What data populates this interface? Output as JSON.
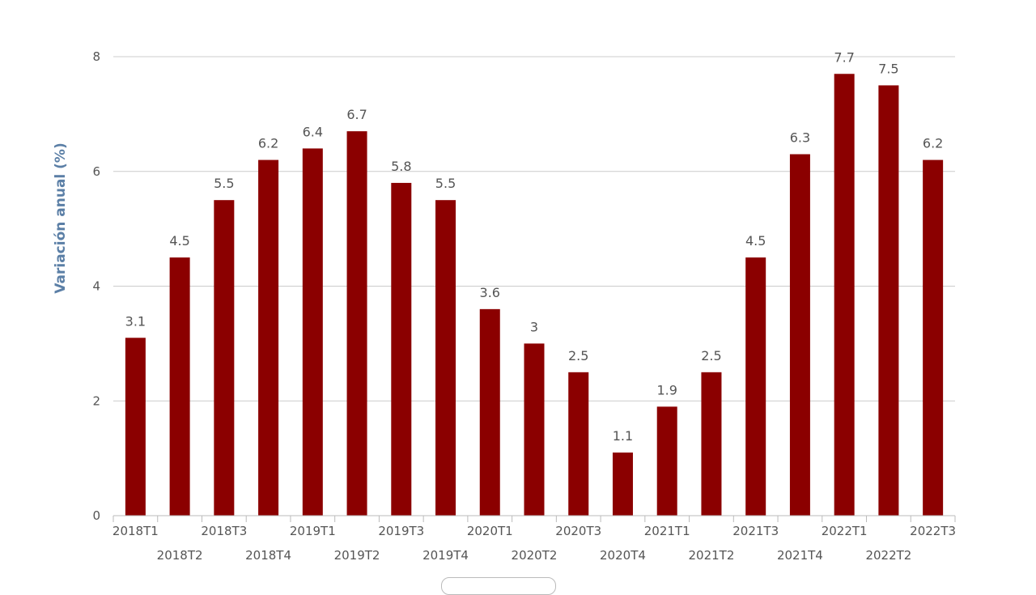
{
  "chart_data": {
    "type": "bar",
    "title": "",
    "xlabel": "",
    "ylabel": "Variación anual (%)",
    "ylim": [
      0,
      8
    ],
    "yticks": [
      0,
      2,
      4,
      6,
      8
    ],
    "grid": true,
    "bar_color": "#8b0000",
    "categories": [
      "2018T1",
      "2018T2",
      "2018T3",
      "2018T4",
      "2019T1",
      "2019T2",
      "2019T3",
      "2019T4",
      "2020T1",
      "2020T2",
      "2020T3",
      "2020T4",
      "2021T1",
      "2021T2",
      "2021T3",
      "2021T4",
      "2022T1",
      "2022T2",
      "2022T3"
    ],
    "values": [
      3.1,
      4.5,
      5.5,
      6.2,
      6.4,
      6.7,
      5.8,
      5.5,
      3.6,
      3,
      2.5,
      1.1,
      1.9,
      2.5,
      4.5,
      6.3,
      7.7,
      7.5,
      6.2
    ]
  }
}
